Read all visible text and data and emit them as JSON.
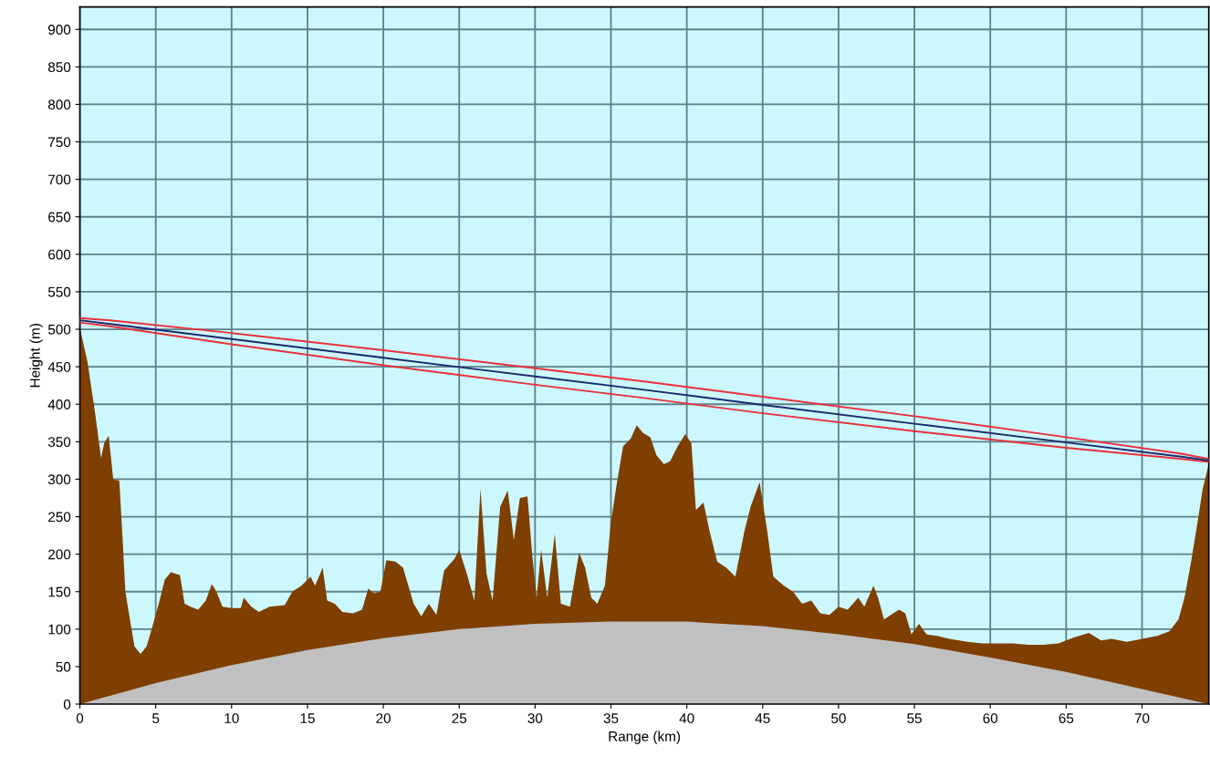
{
  "chart_data": {
    "type": "area",
    "xlabel": "Range (km)",
    "ylabel": "Height (m)",
    "xlim": [
      0,
      74.4
    ],
    "ylim": [
      0,
      930
    ],
    "xticks": [
      0,
      5,
      10,
      15,
      20,
      25,
      30,
      35,
      40,
      45,
      50,
      55,
      60,
      65,
      70
    ],
    "yticks": [
      0,
      50,
      100,
      150,
      200,
      250,
      300,
      350,
      400,
      450,
      500,
      550,
      600,
      650,
      700,
      750,
      800,
      850,
      900
    ],
    "grid": true,
    "legend": false,
    "series": [
      {
        "color": "#7f3f00",
        "x": [
          0,
          0.5,
          1,
          1.4,
          1.6,
          1.9,
          2.2,
          2.6,
          2.8,
          3.0,
          3.3,
          3.6,
          4.0,
          4.4,
          4.8,
          5.2,
          5.6,
          6.0,
          6.6,
          6.9,
          7.3,
          7.8,
          8.3,
          8.7,
          9.0,
          9.4,
          10,
          10.6,
          10.8,
          11.3,
          11.8,
          12.5,
          13.5,
          14.0,
          14.6,
          15.2,
          15.5,
          16.0,
          16.3,
          16.8,
          17.3,
          18.0,
          18.6,
          19.0,
          19.4,
          19.8,
          20.2,
          20.8,
          21.3,
          22.0,
          22.5,
          23.0,
          23.5,
          24.0,
          24.7,
          25.0,
          25.5,
          26.0,
          26.4,
          26.8,
          27.2,
          27.7,
          28.2,
          28.6,
          29.0,
          29.5,
          29.8,
          30.1,
          30.4,
          30.8,
          31.3,
          31.7,
          32.3,
          32.9,
          33.3,
          33.7,
          34.1,
          34.6,
          35.0,
          35.4,
          35.8,
          36.3,
          36.7,
          37.1,
          37.6,
          38.0,
          38.5,
          38.9,
          39.4,
          39.9,
          40.3,
          40.6,
          41.1,
          41.5,
          42.0,
          42.6,
          43.2,
          43.8,
          44.2,
          44.8,
          45.3,
          45.7,
          46.4,
          47.0,
          47.6,
          48.2,
          48.8,
          49.4,
          50.0,
          50.6,
          51.3,
          51.7,
          52.3,
          52.6,
          53.0,
          53.6,
          54.0,
          54.4,
          54.8,
          55.3,
          55.8,
          56.5,
          57.3,
          58.5,
          59.5,
          60.5,
          61.5,
          62.5,
          63.5,
          64.5,
          65.5,
          66.5,
          67.3,
          68.0,
          69.0,
          70.0,
          71.0,
          71.8,
          72.4,
          72.8,
          73.2,
          73.6,
          74.0,
          74.4
        ],
        "values": [
          502,
          457,
          389,
          328,
          348,
          358,
          300,
          298,
          227,
          150,
          113,
          77,
          67,
          77,
          105,
          134,
          166,
          176,
          172,
          134,
          130,
          126,
          138,
          160,
          150,
          130,
          128,
          128,
          142,
          130,
          123,
          130,
          132,
          150,
          158,
          170,
          158,
          182,
          138,
          134,
          123,
          121,
          126,
          154,
          148,
          150,
          192,
          190,
          182,
          134,
          117,
          134,
          119,
          178,
          194,
          206,
          174,
          138,
          287,
          174,
          138,
          263,
          285,
          219,
          275,
          277,
          202,
          142,
          206,
          142,
          227,
          134,
          130,
          202,
          182,
          142,
          134,
          158,
          243,
          296,
          344,
          354,
          372,
          362,
          356,
          332,
          320,
          324,
          344,
          360,
          348,
          259,
          269,
          231,
          190,
          182,
          170,
          231,
          263,
          296,
          231,
          170,
          158,
          150,
          134,
          138,
          121,
          119,
          130,
          126,
          142,
          130,
          158,
          142,
          113,
          121,
          126,
          121,
          93,
          107,
          93,
          91,
          87,
          83,
          81,
          81,
          81,
          79,
          79,
          81,
          89,
          95,
          85,
          87,
          83,
          87,
          91,
          97,
          113,
          142,
          186,
          235,
          287,
          320
        ]
      },
      {
        "color": "#c0c0c0",
        "x": [
          0,
          5,
          10,
          15,
          20,
          25,
          30,
          35,
          40,
          45,
          50,
          55,
          60,
          65,
          70,
          74.4
        ],
        "values": [
          0,
          28,
          52,
          72,
          88,
          100,
          107,
          110,
          110,
          104,
          93,
          80,
          62,
          43,
          20,
          0
        ]
      },
      {
        "type": "line",
        "color": "#e8303a",
        "x": [
          0,
          2,
          10,
          20,
          30,
          37.3,
          45,
          55,
          65,
          72.6,
          74.4
        ],
        "values": [
          515,
          512,
          495,
          472,
          448,
          430,
          410,
          384,
          356,
          334,
          327
        ]
      },
      {
        "type": "line",
        "color": "#e8303a",
        "x": [
          0,
          2,
          10,
          20,
          30,
          37.3,
          45,
          55,
          65,
          72.6,
          74.4
        ],
        "values": [
          509,
          504,
          480,
          452,
          426,
          408,
          388,
          364,
          342,
          327,
          323
        ]
      },
      {
        "type": "line",
        "color": "#1a2a6c",
        "x": [
          0,
          2,
          10,
          20,
          30,
          37.3,
          45,
          55,
          65,
          72.6,
          74.4
        ],
        "values": [
          512,
          507,
          487,
          462,
          437,
          419,
          399,
          374,
          349,
          330,
          325
        ]
      }
    ]
  }
}
